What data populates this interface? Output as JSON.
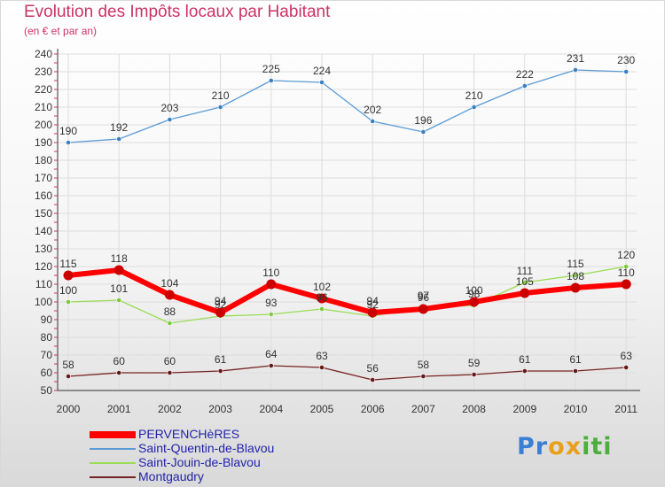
{
  "chart_data": {
    "type": "line",
    "title": "Evolution des Impôts locaux par Habitant",
    "subtitle": "(en € et par an)",
    "xlabel": "",
    "ylabel": "",
    "ylim": [
      50,
      240
    ],
    "yticks": [
      50,
      60,
      70,
      80,
      90,
      100,
      110,
      120,
      130,
      140,
      150,
      160,
      170,
      180,
      190,
      200,
      210,
      220,
      230,
      240
    ],
    "categories": [
      "2000",
      "2001",
      "2002",
      "2003",
      "2004",
      "2005",
      "2006",
      "2007",
      "2008",
      "2009",
      "2010",
      "2011"
    ],
    "grid": true,
    "legend_position": "bottom-left",
    "series": [
      {
        "name": "PERVENCHèRES",
        "color": "#ff0000",
        "values": [
          115,
          118,
          104,
          94,
          110,
          102,
          94,
          96,
          100,
          105,
          108,
          110
        ]
      },
      {
        "name": "Saint-Quentin-de-Blavou",
        "color": "#5b9bd5",
        "values": [
          190,
          192,
          203,
          210,
          225,
          224,
          202,
          196,
          210,
          222,
          231,
          230
        ]
      },
      {
        "name": "Saint-Jouin-de-Blavou",
        "color": "#99dd55",
        "values": [
          100,
          101,
          88,
          92,
          93,
          96,
          92,
          97,
          98,
          111,
          115,
          120
        ]
      },
      {
        "name": "Montgaudry",
        "color": "#772222",
        "values": [
          58,
          60,
          60,
          61,
          64,
          63,
          56,
          58,
          59,
          61,
          61,
          63
        ]
      }
    ]
  },
  "brand": {
    "letters": [
      "P",
      "r",
      "o",
      "x",
      "i",
      "t",
      "i"
    ],
    "colors": [
      "#3a7fd5",
      "#3a7fd5",
      "#e8a01c",
      "#e8a01c",
      "#4cae3c",
      "#4cae3c",
      "#4cae3c"
    ]
  }
}
